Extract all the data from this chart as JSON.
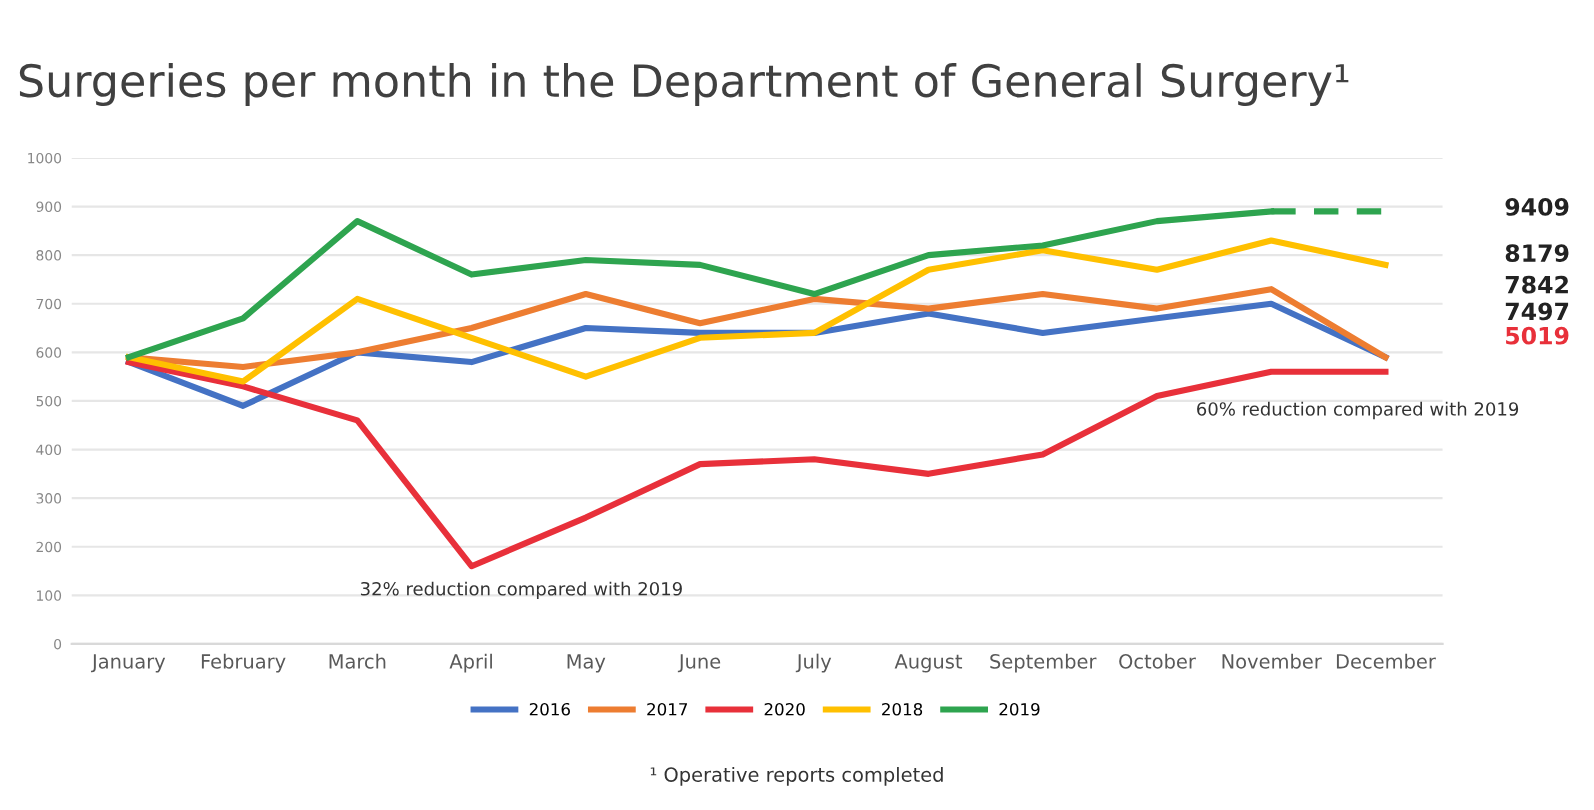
{
  "chart_data": {
    "type": "line",
    "title": "Surgeries per month in the Department of General Surgery¹",
    "categories": [
      "January",
      "February",
      "March",
      "April",
      "May",
      "June",
      "July",
      "August",
      "September",
      "October",
      "November",
      "December"
    ],
    "series": [
      {
        "name": "2016",
        "color": "#4472c4",
        "values": [
          580,
          490,
          600,
          580,
          650,
          640,
          640,
          680,
          640,
          670,
          700,
          590
        ]
      },
      {
        "name": "2017",
        "color": "#ed7d31",
        "values": [
          590,
          570,
          600,
          650,
          720,
          660,
          710,
          690,
          720,
          690,
          730,
          590
        ]
      },
      {
        "name": "2020",
        "color": "#e8303a",
        "values": [
          580,
          530,
          460,
          160,
          260,
          370,
          380,
          350,
          390,
          510,
          560,
          560
        ]
      },
      {
        "name": "2018",
        "color": "#ffc000",
        "values": [
          590,
          540,
          710,
          630,
          550,
          630,
          640,
          770,
          810,
          770,
          830,
          780
        ]
      },
      {
        "name": "2019",
        "color": "#2ea44f",
        "values": [
          590,
          670,
          870,
          760,
          790,
          780,
          720,
          800,
          820,
          870,
          890,
          null
        ]
      },
      {
        "color": "#2ea44f",
        "line_style": "dashed",
        "values": [
          null,
          null,
          null,
          null,
          null,
          null,
          null,
          null,
          null,
          null,
          890,
          890
        ]
      }
    ],
    "ylim": [
      0,
      1000
    ],
    "yticks": [
      0,
      100,
      200,
      300,
      400,
      500,
      600,
      700,
      800,
      900,
      1000
    ],
    "grid": "y",
    "legend": "bottom",
    "line_style": "solid",
    "marker": "none",
    "annotations": [
      "9409",
      "8179",
      "7842",
      "7497",
      "5019",
      "32% reduction compared with 2019",
      "60% reduction compared with 2019",
      "¹ Operative reports completed"
    ]
  }
}
